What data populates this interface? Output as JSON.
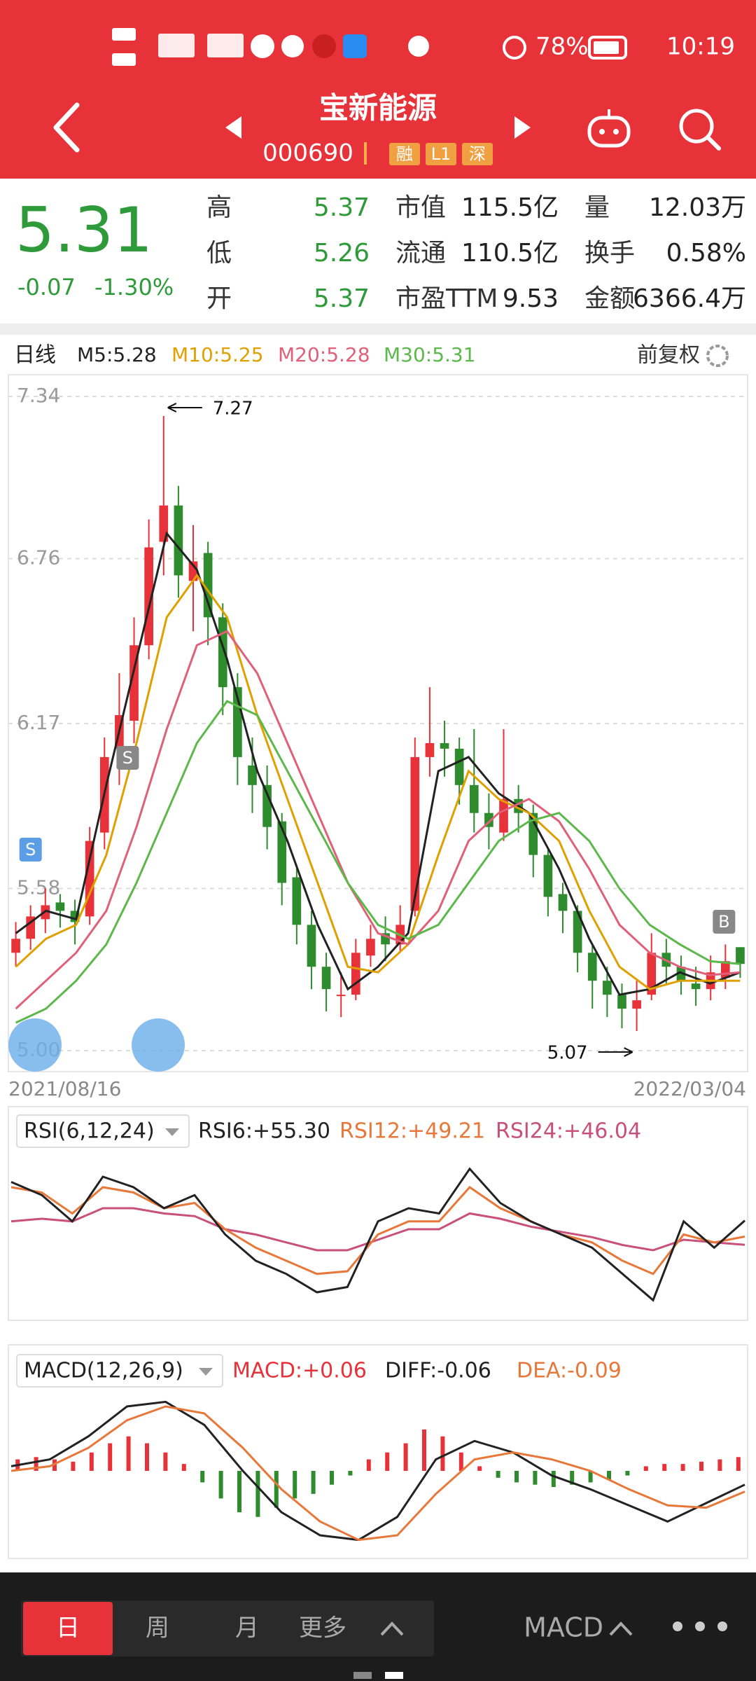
{
  "status_bar": {
    "battery": "78%",
    "time": "10:19"
  },
  "header": {
    "title": "宝新能源",
    "code": "000690",
    "tags": [
      "融",
      "L1",
      "深"
    ]
  },
  "quote": {
    "price": "5.31",
    "change": "-0.07",
    "change_pct": "-1.30%",
    "stats": [
      {
        "label": "高",
        "value": "5.37"
      },
      {
        "label": "市值",
        "value": "115.5亿"
      },
      {
        "label": "量",
        "value": "12.03万"
      },
      {
        "label": "低",
        "value": "5.26"
      },
      {
        "label": "流通",
        "value": "110.5亿"
      },
      {
        "label": "换手",
        "value": "0.58%"
      },
      {
        "label": "开",
        "value": "5.37"
      },
      {
        "label": "市盈TTM",
        "value": "9.53"
      },
      {
        "label": "金额",
        "value": "6366.4万"
      }
    ]
  },
  "indicator_bar": {
    "period": "日线",
    "ma": [
      {
        "label": "M5:5.28",
        "color": "#222222"
      },
      {
        "label": "M10:5.25",
        "color": "#e0a000"
      },
      {
        "label": "M20:5.28",
        "color": "#e0607a"
      },
      {
        "label": "M30:5.31",
        "color": "#5cb84a"
      }
    ],
    "adjust": "前复权"
  },
  "kline": {
    "ylim": [
      5,
      7.34
    ],
    "yticks": [
      7.34,
      6.76,
      6.17,
      5.58,
      {
        "value": 5,
        "label": "5.00"
      }
    ],
    "up_color": "#e8323a",
    "down_color": "#2e8b2e",
    "candles": [
      [
        5.35,
        5.4,
        5.46,
        5.3
      ],
      [
        5.4,
        5.48,
        5.52,
        5.36
      ],
      [
        5.47,
        5.52,
        5.58,
        5.42
      ],
      [
        5.53,
        5.5,
        5.56,
        5.44
      ],
      [
        5.5,
        5.46,
        5.54,
        5.38
      ],
      [
        5.48,
        5.75,
        5.8,
        5.45
      ],
      [
        5.78,
        6.05,
        6.12,
        5.72
      ],
      [
        6.08,
        6.2,
        6.35,
        5.95
      ],
      [
        6.18,
        6.45,
        6.55,
        6.1
      ],
      [
        6.45,
        6.8,
        6.9,
        6.4
      ],
      [
        6.82,
        6.95,
        7.27,
        6.7
      ],
      [
        6.95,
        6.7,
        7.02,
        6.62
      ],
      [
        6.68,
        6.75,
        6.88,
        6.5
      ],
      [
        6.78,
        6.55,
        6.82,
        6.45
      ],
      [
        6.55,
        6.3,
        6.6,
        6.2
      ],
      [
        6.3,
        6.05,
        6.35,
        5.95
      ],
      [
        6.02,
        5.95,
        6.12,
        5.85
      ],
      [
        5.95,
        5.8,
        6.02,
        5.72
      ],
      [
        5.82,
        5.6,
        5.85,
        5.52
      ],
      [
        5.62,
        5.45,
        5.66,
        5.38
      ],
      [
        5.45,
        5.3,
        5.5,
        5.22
      ],
      [
        5.3,
        5.22,
        5.35,
        5.14
      ],
      [
        5.2,
        5.2,
        5.28,
        5.12
      ],
      [
        5.2,
        5.35,
        5.4,
        5.18
      ],
      [
        5.34,
        5.4,
        5.45,
        5.3
      ],
      [
        5.42,
        5.38,
        5.48,
        5.32
      ],
      [
        5.38,
        5.45,
        5.52,
        5.35
      ],
      [
        5.5,
        6.05,
        6.12,
        5.48
      ],
      [
        6.05,
        6.1,
        6.3,
        5.98
      ],
      [
        6.1,
        6.08,
        6.18,
        5.98
      ],
      [
        6.08,
        5.95,
        6.12,
        5.88
      ],
      [
        5.95,
        5.85,
        6.15,
        5.78
      ],
      [
        5.85,
        5.8,
        5.92,
        5.72
      ],
      [
        5.78,
        5.9,
        6.15,
        5.75
      ],
      [
        5.9,
        5.85,
        5.95,
        5.78
      ],
      [
        5.85,
        5.7,
        5.88,
        5.62
      ],
      [
        5.7,
        5.55,
        5.72,
        5.48
      ],
      [
        5.56,
        5.5,
        5.6,
        5.42
      ],
      [
        5.5,
        5.35,
        5.52,
        5.28
      ],
      [
        5.35,
        5.25,
        5.38,
        5.15
      ],
      [
        5.25,
        5.2,
        5.3,
        5.12
      ],
      [
        5.2,
        5.15,
        5.24,
        5.08
      ],
      [
        5.15,
        5.18,
        5.25,
        5.07
      ],
      [
        5.2,
        5.35,
        5.42,
        5.18
      ],
      [
        5.35,
        5.3,
        5.4,
        5.24
      ],
      [
        5.3,
        5.25,
        5.34,
        5.2
      ],
      [
        5.24,
        5.22,
        5.3,
        5.16
      ],
      [
        5.22,
        5.28,
        5.34,
        5.18
      ],
      [
        5.26,
        5.32,
        5.38,
        5.22
      ],
      [
        5.37,
        5.31,
        5.37,
        5.26
      ]
    ],
    "ma_series": [
      {
        "color": "#222222",
        "values": [
          5.42,
          5.5,
          5.47,
          5.95,
          6.4,
          6.85,
          6.72,
          6.4,
          6.0,
          5.75,
          5.45,
          5.22,
          5.3,
          5.42,
          6.0,
          6.05,
          5.92,
          5.85,
          5.65,
          5.4,
          5.2,
          5.22,
          5.28,
          5.24,
          5.28
        ]
      },
      {
        "color": "#e0a000",
        "values": [
          5.3,
          5.4,
          5.45,
          5.7,
          6.1,
          6.55,
          6.7,
          6.55,
          6.2,
          5.9,
          5.6,
          5.3,
          5.28,
          5.38,
          5.7,
          6.0,
          5.9,
          5.85,
          5.75,
          5.5,
          5.3,
          5.22,
          5.25,
          5.25,
          5.25
        ]
      },
      {
        "color": "#e0607a",
        "values": [
          5.15,
          5.25,
          5.35,
          5.5,
          5.8,
          6.15,
          6.45,
          6.5,
          6.35,
          6.1,
          5.85,
          5.6,
          5.42,
          5.38,
          5.5,
          5.75,
          5.85,
          5.9,
          5.82,
          5.65,
          5.45,
          5.35,
          5.3,
          5.27,
          5.28
        ]
      },
      {
        "color": "#5cb84a",
        "values": [
          5.1,
          5.15,
          5.25,
          5.38,
          5.6,
          5.85,
          6.1,
          6.25,
          6.2,
          6.0,
          5.8,
          5.6,
          5.45,
          5.4,
          5.45,
          5.6,
          5.75,
          5.82,
          5.85,
          5.75,
          5.58,
          5.45,
          5.38,
          5.32,
          5.31
        ]
      }
    ],
    "max_label": 7.27,
    "min_label": 5.07,
    "markers": [
      "S",
      "S",
      "B"
    ],
    "dates": [
      "2021/08/16",
      "2022/03/04"
    ]
  },
  "rsi": {
    "title": "RSI(6,12,24)",
    "ylim": [
      20,
      80
    ],
    "legend": [
      {
        "label": "RSI6:+55.30",
        "color": "#222222"
      },
      {
        "label": "RSI12:+49.21",
        "color": "#e8783a"
      },
      {
        "label": "RSI24:+46.04",
        "color": "#c8507a"
      }
    ],
    "series": [
      {
        "color": "#222222",
        "values": [
          70,
          65,
          55,
          72,
          68,
          60,
          65,
          50,
          40,
          35,
          28,
          30,
          55,
          60,
          58,
          75,
          62,
          55,
          50,
          45,
          35,
          25,
          55,
          45,
          55.3
        ]
      },
      {
        "color": "#e8783a",
        "values": [
          68,
          66,
          58,
          68,
          66,
          60,
          62,
          52,
          45,
          40,
          35,
          36,
          50,
          55,
          55,
          68,
          60,
          55,
          50,
          47,
          40,
          35,
          50,
          47,
          49.21
        ]
      },
      {
        "color": "#c8507a",
        "values": [
          55,
          56,
          55,
          60,
          60,
          58,
          57,
          52,
          50,
          47,
          44,
          44,
          48,
          52,
          52,
          58,
          56,
          53,
          51,
          49,
          46,
          44,
          48,
          47,
          46.04
        ]
      }
    ]
  },
  "macd": {
    "title": "MACD(12,26,9)",
    "ylim": [
      -0.35,
      0.35
    ],
    "up_color": "#e8323a",
    "down_color": "#2e8b2e",
    "legend": [
      {
        "label": "MACD:+0.06",
        "color": "#e8323a"
      },
      {
        "label": "DIFF:-0.06",
        "color": "#222222"
      },
      {
        "label": "DEA:-0.09",
        "color": "#e8783a"
      }
    ],
    "histogram": [
      0.05,
      0.06,
      0.05,
      0.04,
      0.08,
      0.12,
      0.15,
      0.12,
      0.08,
      0.03,
      -0.05,
      -0.12,
      -0.18,
      -0.2,
      -0.16,
      -0.12,
      -0.1,
      -0.06,
      -0.02,
      0.05,
      0.08,
      0.12,
      0.18,
      0.15,
      0.08,
      0.02,
      -0.03,
      -0.05,
      -0.06,
      -0.07,
      -0.06,
      -0.05,
      -0.04,
      -0.02,
      0.02,
      0.03,
      0.03,
      0.04,
      0.05,
      0.06
    ],
    "series": [
      {
        "color": "#222222",
        "values": [
          0.02,
          0.05,
          0.15,
          0.28,
          0.3,
          0.2,
          0.0,
          -0.18,
          -0.28,
          -0.3,
          -0.2,
          0.05,
          0.13,
          0.08,
          -0.02,
          -0.08,
          -0.15,
          -0.22,
          -0.14,
          -0.06
        ]
      },
      {
        "color": "#e8783a",
        "values": [
          0.0,
          0.02,
          0.1,
          0.22,
          0.28,
          0.25,
          0.1,
          -0.08,
          -0.22,
          -0.3,
          -0.28,
          -0.1,
          0.05,
          0.08,
          0.05,
          0.0,
          -0.08,
          -0.15,
          -0.16,
          -0.09
        ]
      }
    ]
  },
  "bottom_bar": {
    "tabs": [
      "日",
      "周",
      "月",
      "更多"
    ],
    "indicator": "MACD"
  }
}
